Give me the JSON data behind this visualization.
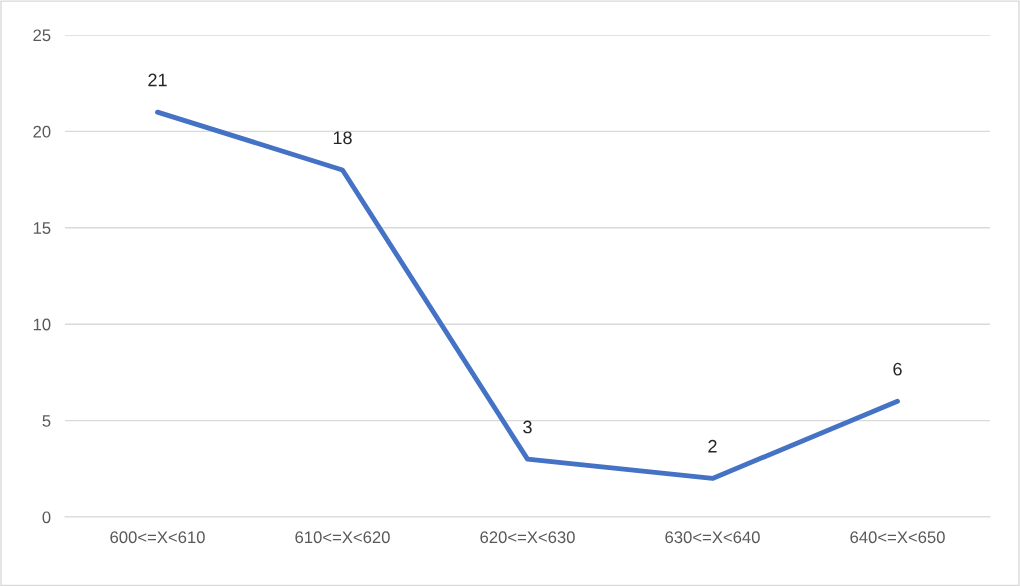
{
  "chart_data": {
    "type": "line",
    "categories": [
      "600<=X<610",
      "610<=X<620",
      "620<=X<630",
      "630<=X<640",
      "640<=X<650"
    ],
    "values": [
      21,
      18,
      3,
      2,
      6
    ],
    "color": "#4472c4",
    "ylim": [
      0,
      25
    ],
    "yticks": [
      0,
      5,
      10,
      15,
      20,
      25
    ],
    "grid": "y",
    "data_labels": true,
    "marker": "none",
    "line_style": "solid",
    "legend": false
  }
}
